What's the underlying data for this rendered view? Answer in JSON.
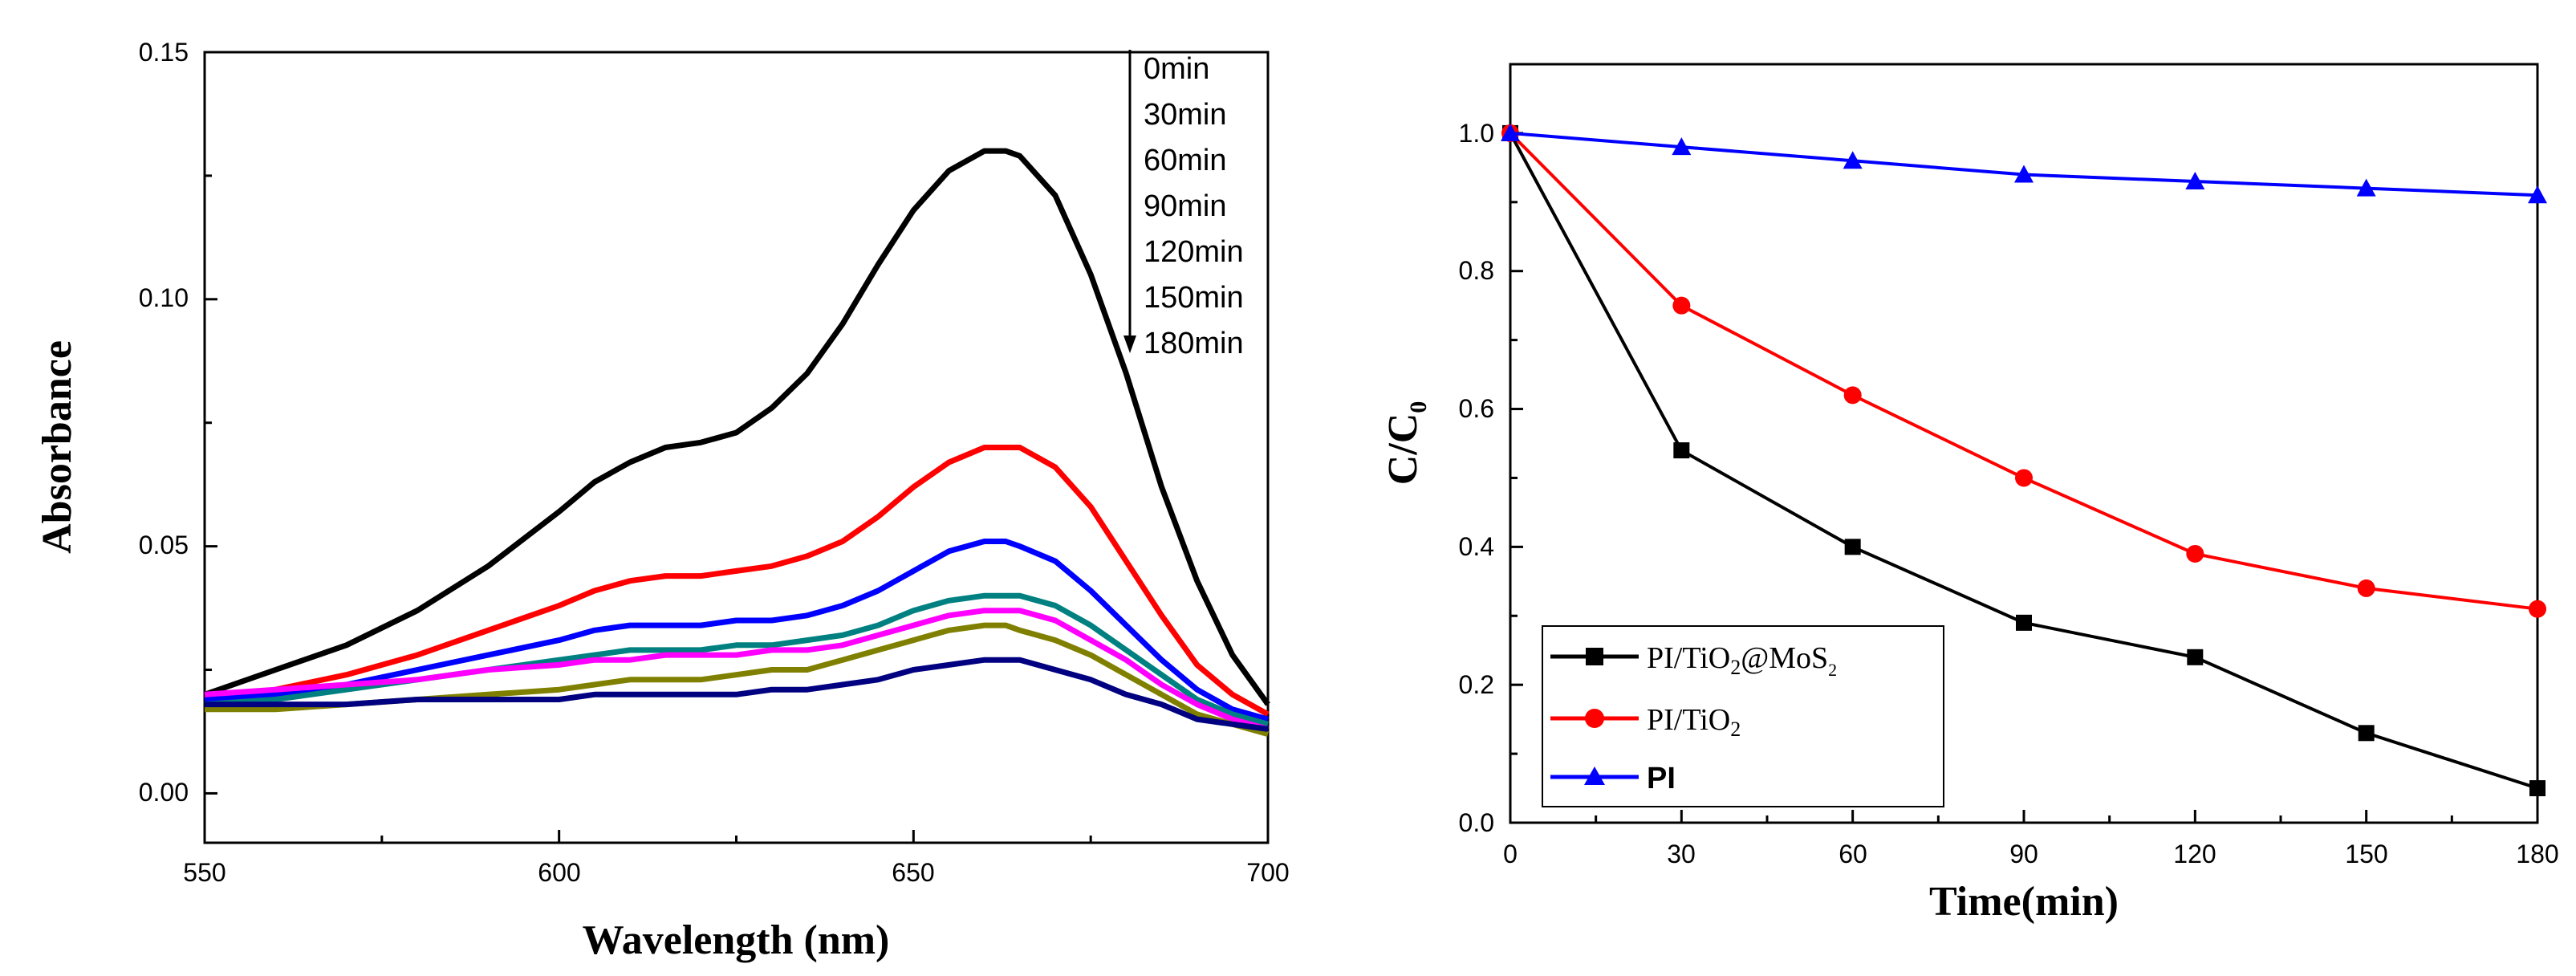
{
  "chart_data": [
    {
      "type": "line",
      "title": "",
      "xlabel": "Wavelength (nm)",
      "ylabel": "Absorbance",
      "xlim": [
        550,
        700
      ],
      "ylim": [
        -0.01,
        0.15
      ],
      "x_ticks": [
        "550",
        "600",
        "650",
        "700"
      ],
      "y_ticks": [
        "0.00",
        "0.05",
        "0.10",
        "0.15"
      ],
      "legend": {
        "placement": "top-right",
        "entries": [
          "0min",
          "30min",
          "60min",
          "90min",
          "120min",
          "150min",
          "180min"
        ],
        "arrow": "down"
      },
      "x": [
        550,
        560,
        570,
        580,
        590,
        600,
        605,
        610,
        615,
        620,
        625,
        630,
        635,
        640,
        645,
        650,
        655,
        660,
        663,
        665,
        670,
        675,
        680,
        685,
        690,
        695,
        700
      ],
      "series": [
        {
          "name": "0min",
          "color": "#000000",
          "values": [
            0.02,
            0.025,
            0.03,
            0.037,
            0.046,
            0.057,
            0.063,
            0.067,
            0.07,
            0.071,
            0.073,
            0.078,
            0.085,
            0.095,
            0.107,
            0.118,
            0.126,
            0.13,
            0.13,
            0.129,
            0.121,
            0.105,
            0.085,
            0.062,
            0.043,
            0.028,
            0.018
          ]
        },
        {
          "name": "30min",
          "color": "#ff0000",
          "values": [
            0.019,
            0.021,
            0.024,
            0.028,
            0.033,
            0.038,
            0.041,
            0.043,
            0.044,
            0.044,
            0.045,
            0.046,
            0.048,
            0.051,
            0.056,
            0.062,
            0.067,
            0.07,
            0.07,
            0.07,
            0.066,
            0.058,
            0.047,
            0.036,
            0.026,
            0.02,
            0.016
          ]
        },
        {
          "name": "60min",
          "color": "#0000ff",
          "values": [
            0.019,
            0.02,
            0.022,
            0.025,
            0.028,
            0.031,
            0.033,
            0.034,
            0.034,
            0.034,
            0.035,
            0.035,
            0.036,
            0.038,
            0.041,
            0.045,
            0.049,
            0.051,
            0.051,
            0.05,
            0.047,
            0.041,
            0.034,
            0.027,
            0.021,
            0.017,
            0.015
          ]
        },
        {
          "name": "90min",
          "color": "#008080",
          "values": [
            0.018,
            0.019,
            0.021,
            0.023,
            0.025,
            0.027,
            0.028,
            0.029,
            0.029,
            0.029,
            0.03,
            0.03,
            0.031,
            0.032,
            0.034,
            0.037,
            0.039,
            0.04,
            0.04,
            0.04,
            0.038,
            0.034,
            0.029,
            0.024,
            0.019,
            0.016,
            0.014
          ]
        },
        {
          "name": "120min",
          "color": "#ff00ff",
          "values": [
            0.02,
            0.021,
            0.022,
            0.023,
            0.025,
            0.026,
            0.027,
            0.027,
            0.028,
            0.028,
            0.028,
            0.029,
            0.029,
            0.03,
            0.032,
            0.034,
            0.036,
            0.037,
            0.037,
            0.037,
            0.035,
            0.031,
            0.027,
            0.022,
            0.018,
            0.015,
            0.013
          ]
        },
        {
          "name": "150min",
          "color": "#808000",
          "values": [
            0.017,
            0.017,
            0.018,
            0.019,
            0.02,
            0.021,
            0.022,
            0.023,
            0.023,
            0.023,
            0.024,
            0.025,
            0.025,
            0.027,
            0.029,
            0.031,
            0.033,
            0.034,
            0.034,
            0.033,
            0.031,
            0.028,
            0.024,
            0.02,
            0.016,
            0.014,
            0.012
          ]
        },
        {
          "name": "180min",
          "color": "#000080",
          "values": [
            0.018,
            0.018,
            0.018,
            0.019,
            0.019,
            0.019,
            0.02,
            0.02,
            0.02,
            0.02,
            0.02,
            0.021,
            0.021,
            0.022,
            0.023,
            0.025,
            0.026,
            0.027,
            0.027,
            0.027,
            0.025,
            0.023,
            0.02,
            0.018,
            0.015,
            0.014,
            0.013
          ]
        }
      ]
    },
    {
      "type": "line",
      "title": "",
      "xlabel": "Time(min)",
      "ylabel": "C/C",
      "ylabel_subscript": "0",
      "xlim": [
        0,
        180
      ],
      "ylim": [
        0,
        1.1
      ],
      "x_ticks": [
        "0",
        "30",
        "60",
        "90",
        "120",
        "150",
        "180"
      ],
      "y_ticks": [
        "0.0",
        "0.2",
        "0.4",
        "0.6",
        "0.8",
        "1.0"
      ],
      "legend": {
        "placement": "bottom-left",
        "entries": [
          {
            "text": "PI/TiO",
            "sub": "2",
            "suffix": "@MoS",
            "suffix_sub": "2"
          },
          {
            "text": "PI/TiO",
            "sub": "2"
          },
          {
            "text": "PI"
          }
        ]
      },
      "x": [
        0,
        30,
        60,
        90,
        120,
        150,
        180
      ],
      "series": [
        {
          "name": "PI/TiO2@MoS2",
          "color": "#000000",
          "marker": "square",
          "values": [
            1.0,
            0.54,
            0.4,
            0.29,
            0.24,
            0.13,
            0.05
          ]
        },
        {
          "name": "PI/TiO2",
          "color": "#ff0000",
          "marker": "circle",
          "values": [
            1.0,
            0.75,
            0.62,
            0.5,
            0.39,
            0.34,
            0.31
          ]
        },
        {
          "name": "PI",
          "color": "#0000ff",
          "marker": "triangle",
          "values": [
            1.0,
            0.98,
            0.96,
            0.94,
            0.93,
            0.92,
            0.91
          ]
        }
      ]
    }
  ]
}
